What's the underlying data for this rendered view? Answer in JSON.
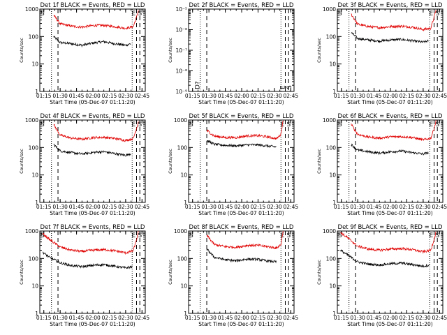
{
  "figure": {
    "ylabel": "Counts/sec",
    "xlabel": "Start Time (05-Dec-07 01:11:20)",
    "x_tick_labels": [
      "01:15",
      "01:30",
      "01:45",
      "02:00",
      "02:15",
      "02:30",
      "02:45"
    ],
    "event_markers": [
      "E",
      "S"
    ],
    "colors": {
      "events": "#000000",
      "lld": "#e00000",
      "axes": "#000000"
    }
  },
  "chart_data": [
    {
      "type": "line",
      "title": "Det 1f BLACK = Events, RED = LLD",
      "yscale": "log",
      "ylim": [
        1,
        1000
      ],
      "y_tick_labels": [
        "1",
        "10",
        "100",
        "1000"
      ],
      "xlim_minutes": [
        "01:11:20",
        "02:48:00"
      ],
      "night_start_minutes": [
        "01:22:00"
      ],
      "dotted_lines": [
        "01:22",
        "02:36"
      ],
      "dashed_lines": [
        "01:28",
        "02:40",
        "02:43"
      ],
      "series": [
        {
          "name": "Events",
          "x": [
            "01:24",
            "01:30",
            "01:40",
            "01:50",
            "02:00",
            "02:10",
            "02:20",
            "02:30",
            "02:35"
          ],
          "values": [
            100,
            60,
            55,
            48,
            58,
            65,
            55,
            48,
            55
          ]
        },
        {
          "name": "LLD",
          "x": [
            "01:24",
            "01:30",
            "01:40",
            "01:50",
            "02:00",
            "02:10",
            "02:20",
            "02:30",
            "02:37",
            "02:40",
            "02:42"
          ],
          "values": [
            600,
            290,
            240,
            220,
            250,
            255,
            230,
            200,
            230,
            500,
            1000
          ]
        }
      ]
    },
    {
      "type": "line",
      "title": "Det 2f BLACK = Events, RED = LLD",
      "yscale": "log",
      "ylim": [
        1e-09,
        1e-05
      ],
      "y_tick_labels": [
        "10⁻⁹",
        "10⁻⁸",
        "10⁻⁷",
        "10⁻⁶",
        "10⁻⁵"
      ],
      "xlim_minutes": [
        "01:11:20",
        "02:48:00"
      ],
      "dotted_lines": [
        "01:22",
        "02:36"
      ],
      "dashed_lines": [
        "01:28",
        "02:40",
        "02:43"
      ],
      "rotated_markers": [
        "D?",
        "E",
        "S"
      ],
      "series": []
    },
    {
      "type": "line",
      "title": "Det 3f BLACK = Events, RED = LLD",
      "yscale": "log",
      "ylim": [
        1,
        1000
      ],
      "y_tick_labels": [
        "1",
        "10",
        "100",
        "1000"
      ],
      "xlim_minutes": [
        "01:11:20",
        "02:48:00"
      ],
      "dotted_lines": [
        "01:22",
        "02:36"
      ],
      "dashed_lines": [
        "01:28",
        "02:40",
        "02:43"
      ],
      "series": [
        {
          "name": "Events",
          "x": [
            "01:24",
            "01:30",
            "01:40",
            "01:50",
            "02:00",
            "02:10",
            "02:20",
            "02:30",
            "02:35"
          ],
          "values": [
            140,
            85,
            75,
            68,
            75,
            78,
            70,
            62,
            70
          ]
        },
        {
          "name": "LLD",
          "x": [
            "01:24",
            "01:30",
            "01:40",
            "01:50",
            "02:00",
            "02:10",
            "02:20",
            "02:30",
            "02:37",
            "02:40",
            "02:42"
          ],
          "values": [
            650,
            280,
            230,
            210,
            230,
            240,
            220,
            180,
            200,
            500,
            1000
          ]
        }
      ]
    },
    {
      "type": "line",
      "title": "Det 4f BLACK = Events, RED = LLD",
      "yscale": "log",
      "ylim": [
        1,
        1000
      ],
      "y_tick_labels": [
        "1",
        "10",
        "100",
        "1000"
      ],
      "xlim_minutes": [
        "01:11:20",
        "02:48:00"
      ],
      "dotted_lines": [
        "01:22",
        "02:36"
      ],
      "dashed_lines": [
        "01:28",
        "02:40",
        "02:43"
      ],
      "series": [
        {
          "name": "Events",
          "x": [
            "01:24",
            "01:30",
            "01:40",
            "01:50",
            "02:00",
            "02:10",
            "02:20",
            "02:30",
            "02:35"
          ],
          "values": [
            130,
            75,
            65,
            58,
            66,
            70,
            60,
            52,
            60
          ]
        },
        {
          "name": "LLD",
          "x": [
            "01:24",
            "01:30",
            "01:40",
            "01:50",
            "02:00",
            "02:10",
            "02:20",
            "02:30",
            "02:37",
            "02:40",
            "02:42"
          ],
          "values": [
            700,
            280,
            220,
            200,
            230,
            235,
            215,
            180,
            210,
            500,
            1000
          ]
        }
      ]
    },
    {
      "type": "line",
      "title": "Det 5f BLACK = Events, RED = LLD",
      "yscale": "log",
      "ylim": [
        1,
        1000
      ],
      "y_tick_labels": [
        "1",
        "10",
        "100",
        "1000"
      ],
      "xlim_minutes": [
        "01:11:20",
        "02:48:00"
      ],
      "dotted_lines": [
        "01:22",
        "02:36"
      ],
      "dashed_lines": [
        "01:28",
        "02:40",
        "02:43"
      ],
      "series": [
        {
          "name": "Events",
          "x": [
            "01:28",
            "01:35",
            "01:45",
            "01:55",
            "02:05",
            "02:15",
            "02:25",
            "02:32"
          ],
          "values": [
            180,
            130,
            120,
            115,
            125,
            125,
            112,
            105
          ]
        },
        {
          "name": "LLD",
          "x": [
            "01:28",
            "01:35",
            "01:45",
            "01:55",
            "02:05",
            "02:15",
            "02:25",
            "02:32",
            "02:36",
            "02:38"
          ],
          "values": [
            420,
            260,
            230,
            230,
            265,
            270,
            240,
            210,
            300,
            1000
          ]
        }
      ]
    },
    {
      "type": "line",
      "title": "Det 6f BLACK = Events, RED = LLD",
      "yscale": "log",
      "ylim": [
        1,
        1000
      ],
      "y_tick_labels": [
        "1",
        "10",
        "100",
        "1000"
      ],
      "xlim_minutes": [
        "01:11:20",
        "02:48:00"
      ],
      "dotted_lines": [
        "01:22",
        "02:36"
      ],
      "dashed_lines": [
        "01:28",
        "02:40",
        "02:43"
      ],
      "series": [
        {
          "name": "Events",
          "x": [
            "01:24",
            "01:30",
            "01:40",
            "01:50",
            "02:00",
            "02:10",
            "02:20",
            "02:30",
            "02:35"
          ],
          "values": [
            130,
            80,
            70,
            62,
            70,
            74,
            65,
            58,
            65
          ]
        },
        {
          "name": "LLD",
          "x": [
            "01:24",
            "01:30",
            "01:40",
            "01:50",
            "02:00",
            "02:10",
            "02:20",
            "02:30",
            "02:37",
            "02:40",
            "02:42"
          ],
          "values": [
            700,
            300,
            240,
            220,
            245,
            250,
            230,
            190,
            215,
            500,
            1000
          ]
        }
      ]
    },
    {
      "type": "line",
      "title": "Det 7f BLACK = Events, RED = LLD",
      "yscale": "log",
      "ylim": [
        1,
        1000
      ],
      "y_tick_labels": [
        "1",
        "10",
        "100",
        "1000"
      ],
      "xlim_minutes": [
        "01:11:20",
        "02:48:00"
      ],
      "dotted_lines": [
        "01:22",
        "02:36"
      ],
      "dashed_lines": [
        "01:28",
        "02:40",
        "02:43"
      ],
      "series": [
        {
          "name": "Events",
          "x": [
            "01:14",
            "01:20",
            "01:30",
            "01:40",
            "01:50",
            "02:00",
            "02:10",
            "02:20",
            "02:30",
            "02:36"
          ],
          "values": [
            170,
            110,
            70,
            55,
            50,
            56,
            60,
            52,
            45,
            50
          ]
        },
        {
          "name": "LLD",
          "x": [
            "01:14",
            "01:20",
            "01:30",
            "01:40",
            "01:50",
            "02:00",
            "02:10",
            "02:20",
            "02:30",
            "02:37",
            "02:40",
            "02:42"
          ],
          "values": [
            800,
            500,
            260,
            200,
            180,
            200,
            210,
            190,
            160,
            190,
            500,
            1000
          ]
        }
      ]
    },
    {
      "type": "line",
      "title": "Det 8f BLACK = Events, RED = LLD",
      "yscale": "log",
      "ylim": [
        1,
        1000
      ],
      "y_tick_labels": [
        "1",
        "10",
        "100",
        "1000"
      ],
      "xlim_minutes": [
        "01:11:20",
        "02:48:00"
      ],
      "dotted_lines": [
        "01:22",
        "02:36"
      ],
      "dashed_lines": [
        "01:28",
        "02:40",
        "02:43"
      ],
      "series": [
        {
          "name": "Events",
          "x": [
            "01:28",
            "01:35",
            "01:45",
            "01:55",
            "02:05",
            "02:15",
            "02:25",
            "02:32"
          ],
          "values": [
            220,
            110,
            90,
            82,
            95,
            92,
            80,
            75
          ]
        },
        {
          "name": "LLD",
          "x": [
            "01:28",
            "01:35",
            "01:45",
            "01:55",
            "02:05",
            "02:15",
            "02:25",
            "02:32",
            "02:36",
            "02:38"
          ],
          "values": [
            700,
            320,
            270,
            255,
            300,
            300,
            265,
            240,
            320,
            1000
          ]
        }
      ]
    },
    {
      "type": "line",
      "title": "Det 9f BLACK = Events, RED = LLD",
      "yscale": "log",
      "ylim": [
        1,
        1000
      ],
      "y_tick_labels": [
        "1",
        "10",
        "100",
        "1000"
      ],
      "xlim_minutes": [
        "01:11:20",
        "02:48:00"
      ],
      "dotted_lines": [
        "01:22",
        "02:36"
      ],
      "dashed_lines": [
        "01:28",
        "02:40",
        "02:43"
      ],
      "series": [
        {
          "name": "Events",
          "x": [
            "01:14",
            "01:20",
            "01:30",
            "01:40",
            "01:50",
            "02:00",
            "02:10",
            "02:20",
            "02:30",
            "02:36"
          ],
          "values": [
            200,
            140,
            75,
            62,
            58,
            64,
            68,
            60,
            52,
            58
          ]
        },
        {
          "name": "LLD",
          "x": [
            "01:14",
            "01:20",
            "01:30",
            "01:40",
            "01:50",
            "02:00",
            "02:10",
            "02:20",
            "02:30",
            "02:37",
            "02:40",
            "02:42"
          ],
          "values": [
            900,
            600,
            280,
            220,
            200,
            220,
            230,
            210,
            175,
            200,
            500,
            1000
          ]
        }
      ]
    }
  ]
}
